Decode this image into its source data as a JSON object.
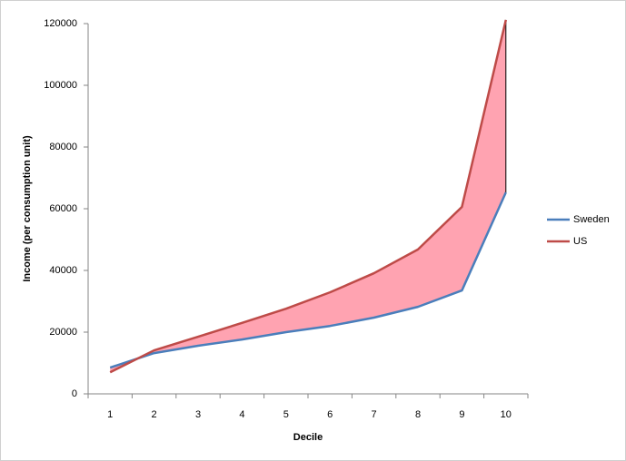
{
  "chart_data": {
    "type": "line",
    "x_label": "Decile",
    "y_label": "Income (per consumption unit)",
    "categories": [
      "1",
      "2",
      "3",
      "4",
      "5",
      "6",
      "7",
      "8",
      "9",
      "10"
    ],
    "series": [
      {
        "name": "Sweden",
        "color": "#4a7ebb",
        "values": [
          8500,
          13200,
          15600,
          17600,
          20000,
          22000,
          24700,
          28200,
          33500,
          65300
        ]
      },
      {
        "name": "US",
        "color": "#be4b48",
        "values": [
          7000,
          14100,
          18500,
          23000,
          27600,
          32900,
          39100,
          46800,
          60600,
          121200
        ]
      }
    ],
    "fill_between_color": "#ffa3b1",
    "ylim": [
      0,
      120000
    ],
    "yticks": [
      0,
      20000,
      40000,
      60000,
      80000,
      100000,
      120000
    ],
    "grid": false,
    "legend": "right"
  }
}
